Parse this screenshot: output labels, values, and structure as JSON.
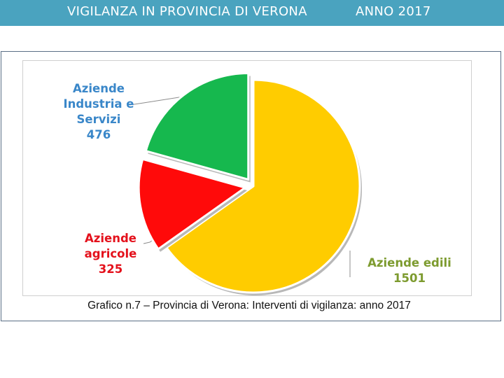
{
  "header": {
    "title": "VIGILANZA IN PROVINCIA DI VERONA",
    "year": "ANNO 2017",
    "background_color": "#4aa3bf"
  },
  "caption": "Grafico n.7 – Provincia di Verona: Interventi di vigilanza: anno 2017",
  "chart_data": {
    "type": "pie",
    "title": "",
    "slices": [
      {
        "label_lines": [
          "Aziende edili"
        ],
        "value": 1501,
        "value_text": "1501",
        "color": "#ffcc00",
        "label_color": "#7d9b2f",
        "exploded": false
      },
      {
        "label_lines": [
          "Aziende",
          "agricole"
        ],
        "value": 325,
        "value_text": "325",
        "color": "#ff0a0a",
        "label_color": "#e4111c",
        "exploded": true
      },
      {
        "label_lines": [
          "Aziende",
          "Industria e",
          "Servizi"
        ],
        "value": 476,
        "value_text": "476",
        "color": "#16b84e",
        "label_color": "#3a87c9",
        "exploded": true
      }
    ],
    "legend": "none",
    "start_angle": "12 o'clock, clockwise"
  }
}
